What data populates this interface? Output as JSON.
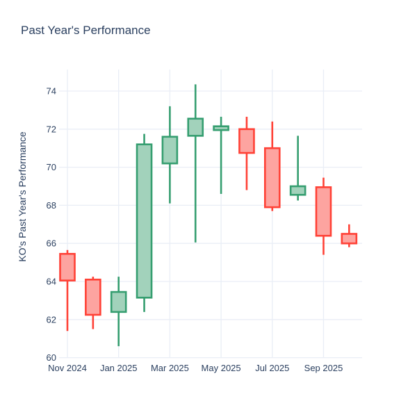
{
  "page": {
    "background_color": "#ffffff"
  },
  "chart_data": {
    "type": "candlestick",
    "title": "Past Year's Performance",
    "xlabel": "",
    "ylabel": "KO's Past Year's Performance",
    "legend": "none",
    "grid": true,
    "ylim": [
      60,
      75.1
    ],
    "y_ticks": [
      60,
      62,
      64,
      66,
      68,
      70,
      72,
      74
    ],
    "x_tick_labels": [
      "Nov 2024",
      "Jan 2025",
      "Mar 2025",
      "May 2025",
      "Jul 2025",
      "Sep 2025"
    ],
    "x_tick_indices": [
      0,
      2,
      4,
      6,
      8,
      10
    ],
    "categories": [
      "Nov 2024",
      "Dec 2024",
      "Jan 2025",
      "Feb 2025",
      "Mar 2025",
      "Apr 2025",
      "May 2025",
      "Jun 2025",
      "Jul 2025",
      "Aug 2025",
      "Sep 2025",
      "Oct 2025"
    ],
    "candles": [
      {
        "date": "Nov 2024",
        "open": 65.45,
        "high": 65.65,
        "low": 61.4,
        "close": 64.05
      },
      {
        "date": "Dec 2024",
        "open": 64.1,
        "high": 64.25,
        "low": 61.5,
        "close": 62.25
      },
      {
        "date": "Jan 2025",
        "open": 62.4,
        "high": 64.25,
        "low": 60.6,
        "close": 63.45
      },
      {
        "date": "Feb 2025",
        "open": 63.15,
        "high": 71.75,
        "low": 62.4,
        "close": 71.2
      },
      {
        "date": "Mar 2025",
        "open": 70.2,
        "high": 73.2,
        "low": 68.1,
        "close": 71.6
      },
      {
        "date": "Apr 2025",
        "open": 71.65,
        "high": 74.35,
        "low": 66.05,
        "close": 72.55
      },
      {
        "date": "May 2025",
        "open": 71.95,
        "high": 72.65,
        "low": 68.6,
        "close": 72.15
      },
      {
        "date": "Jun 2025",
        "open": 72.0,
        "high": 72.65,
        "low": 68.8,
        "close": 70.75
      },
      {
        "date": "Jul 2025",
        "open": 71.0,
        "high": 72.4,
        "low": 67.7,
        "close": 67.9
      },
      {
        "date": "Aug 2025",
        "open": 68.55,
        "high": 71.65,
        "low": 68.25,
        "close": 69.0
      },
      {
        "date": "Sep 2025",
        "open": 68.95,
        "high": 69.45,
        "low": 65.4,
        "close": 66.4
      },
      {
        "date": "Oct 2025",
        "open": 66.5,
        "high": 67.0,
        "low": 65.8,
        "close": 66.0
      }
    ],
    "colors": {
      "increasing_line": "#359e70",
      "increasing_fill": "#a2d2bb",
      "decreasing_line": "#ff4136",
      "decreasing_fill": "#fda4a0",
      "gridline": "#e9eef6",
      "text": "#2a3f5f"
    }
  }
}
